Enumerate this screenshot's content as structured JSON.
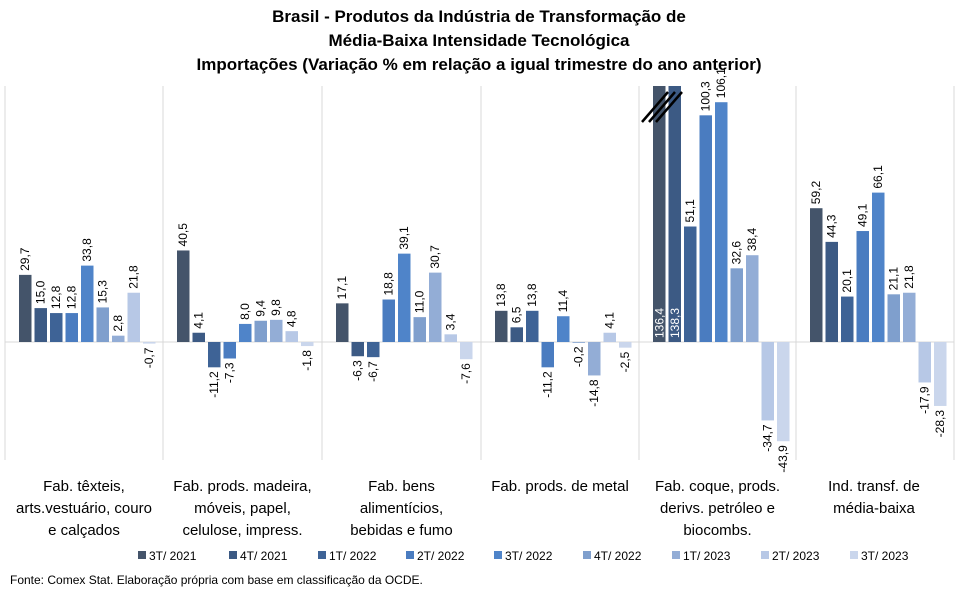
{
  "chart_data": {
    "type": "bar",
    "title": [
      "Brasil - Produtos da Indústria de Transformação de",
      "Média-Baixa Intensidade Tecnológica",
      "Importações (Variação % em relação a igual trimestre do ano anterior)"
    ],
    "categories": [
      [
        "Fab. têxteis,",
        "arts.vestuário, couro",
        "e calçados"
      ],
      [
        "Fab. prods. madeira,",
        "móveis, papel,",
        "celulose, impress."
      ],
      [
        "Fab. bens",
        "alimentícios,",
        "bebidas e fumo"
      ],
      [
        "Fab. prods. de metal"
      ],
      [
        "Fab. coque, prods.",
        "derivs. petróleo e",
        "biocombs."
      ],
      [
        "Ind. transf. de",
        "média-baixa"
      ]
    ],
    "series": [
      {
        "name": "3T/ 2021",
        "color": "#44546a",
        "values": [
          29.7,
          40.5,
          17.1,
          13.8,
          136.4,
          59.2
        ]
      },
      {
        "name": "4T/ 2021",
        "color": "#3c5a84",
        "values": [
          15.0,
          4.1,
          -6.3,
          6.5,
          138.3,
          44.3
        ]
      },
      {
        "name": "1T/ 2022",
        "color": "#3e6396",
        "values": [
          12.8,
          -11.2,
          -6.7,
          13.8,
          51.1,
          20.1
        ]
      },
      {
        "name": "2T/ 2022",
        "color": "#4a7cc0",
        "values": [
          12.8,
          -7.3,
          18.8,
          -11.2,
          100.3,
          49.1
        ]
      },
      {
        "name": "3T/ 2022",
        "color": "#4f84c9",
        "values": [
          33.8,
          8.0,
          39.1,
          11.4,
          106.1,
          66.1
        ]
      },
      {
        "name": "4T/ 2022",
        "color": "#7f9fcd",
        "values": [
          15.3,
          9.4,
          11.0,
          -0.2,
          32.6,
          21.1
        ]
      },
      {
        "name": "1T/ 2023",
        "color": "#93add6",
        "values": [
          2.8,
          9.8,
          30.7,
          -14.8,
          38.4,
          21.8
        ]
      },
      {
        "name": "2T/ 2023",
        "color": "#b7c8e6",
        "values": [
          21.8,
          4.8,
          3.4,
          4.1,
          -34.7,
          -17.9
        ]
      },
      {
        "name": "3T/ 2023",
        "color": "#cad6ec",
        "values": [
          -0.7,
          -1.8,
          -7.6,
          -2.5,
          -43.9,
          -28.3
        ]
      }
    ],
    "value_labels": [
      [
        "29,7",
        "15,0",
        "12,8",
        "12,8",
        "33,8",
        "15,3",
        "2,8",
        "21,8",
        "-0,7"
      ],
      [
        "40,5",
        "4,1",
        "-11,2",
        "-7,3",
        "8,0",
        "9,4",
        "9,8",
        "4,8",
        "-1,8"
      ],
      [
        "17,1",
        "-6,3",
        "-6,7",
        "18,8",
        "39,1",
        "11,0",
        "30,7",
        "3,4",
        "-7,6"
      ],
      [
        "13,8",
        "6,5",
        "13,8",
        "-11,2",
        "11,4",
        "-0,2",
        "-14,8",
        "4,1",
        "-2,5"
      ],
      [
        "136,4",
        "138,3",
        "51,1",
        "100,3",
        "106,1",
        "32,6",
        "38,4",
        "-34,7",
        "-43,9"
      ],
      [
        "59,2",
        "44,3",
        "20,1",
        "49,1",
        "66,1",
        "21,1",
        "21,8",
        "-17,9",
        "-28,3"
      ]
    ],
    "axis_break": {
      "category": "Fab. coque, prods. derivs. petróleo e biocombs.",
      "series": [
        "3T/ 2021",
        "4T/ 2021"
      ]
    },
    "ylim": [
      -55,
      105
    ],
    "legend": "bottom",
    "grid": false
  },
  "source": "Fonte: Comex Stat. Elaboração própria com base em classificação da OCDE."
}
